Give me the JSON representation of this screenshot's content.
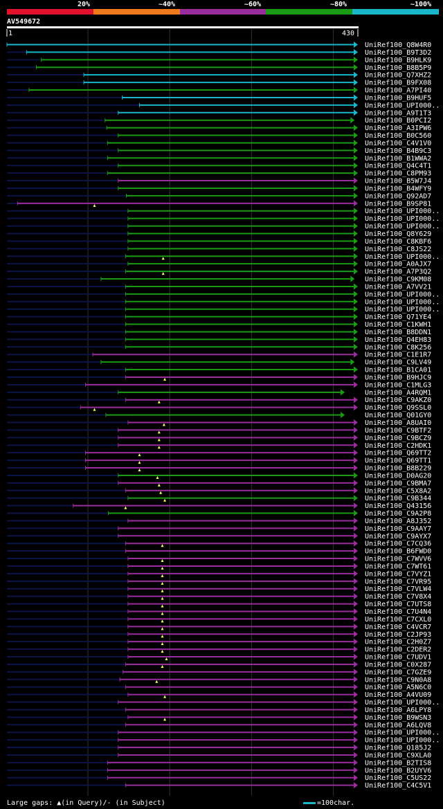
{
  "colors": {
    "red": "#e3122c",
    "orange": "#ee7a1c",
    "purple": "#9a2c9e",
    "green": "#199c14",
    "cyan": "#17b7cc",
    "dark": "#0b1447",
    "grid": "#333333"
  },
  "legend": [
    {
      "label": "20%",
      "color": "#e3122c"
    },
    {
      "label": "~40%",
      "color": "#ee7a1c"
    },
    {
      "label": "~60%",
      "color": "#9a2c9e"
    },
    {
      "label": "~80%",
      "color": "#199c14"
    },
    {
      "label": "~100%",
      "color": "#17b7cc"
    }
  ],
  "query": {
    "id": "AV549672",
    "start": "1",
    "end": "430",
    "length": 430
  },
  "footer": {
    "gaps_text": "Large gaps: ▲(in Query)/- (in Subject)",
    "scale_text": "=100char."
  },
  "chart_data": {
    "type": "alignment",
    "title": "AV549672",
    "x_range": [
      1,
      430
    ],
    "hits": [
      {
        "name": "UniRef100_Q8W4R0",
        "start": 1,
        "end": 430,
        "color": "cyan",
        "gap": null
      },
      {
        "name": "UniRef100_B9T3D2",
        "start": 25,
        "end": 430,
        "color": "cyan",
        "gap": null
      },
      {
        "name": "UniRef100_B9HLK9",
        "start": 43,
        "end": 430,
        "color": "green",
        "gap": null
      },
      {
        "name": "UniRef100_B8B5P9",
        "start": 37,
        "end": 430,
        "color": "green",
        "gap": null
      },
      {
        "name": "UniRef100_Q7XHZ2",
        "start": 95,
        "end": 430,
        "color": "cyan",
        "gap": null
      },
      {
        "name": "UniRef100_B9FX08",
        "start": 95,
        "end": 430,
        "color": "cyan",
        "gap": null
      },
      {
        "name": "UniRef100_A7PI40",
        "start": 28,
        "end": 430,
        "color": "green",
        "gap": null
      },
      {
        "name": "UniRef100_B9HUF5",
        "start": 142,
        "end": 430,
        "color": "cyan",
        "gap": null
      },
      {
        "name": "UniRef100_UPI000..",
        "start": 163,
        "end": 430,
        "color": "cyan",
        "gap": null
      },
      {
        "name": "UniRef100_A9T1T3",
        "start": 137,
        "end": 430,
        "color": "cyan",
        "gap": null
      },
      {
        "name": "UniRef100_B0PCI2",
        "start": 121,
        "end": 426,
        "color": "green",
        "gap": null
      },
      {
        "name": "UniRef100_A3IPW6",
        "start": 123,
        "end": 430,
        "color": "green",
        "gap": null
      },
      {
        "name": "UniRef100_B0C560",
        "start": 137,
        "end": 430,
        "color": "green",
        "gap": null
      },
      {
        "name": "UniRef100_C4V1V0",
        "start": 124,
        "end": 430,
        "color": "green",
        "gap": null
      },
      {
        "name": "UniRef100_B4B9C3",
        "start": 137,
        "end": 430,
        "color": "green",
        "gap": null
      },
      {
        "name": "UniRef100_B1WWA2",
        "start": 124,
        "end": 430,
        "color": "green",
        "gap": null
      },
      {
        "name": "UniRef100_Q4C4T1",
        "start": 137,
        "end": 430,
        "color": "green",
        "gap": null
      },
      {
        "name": "UniRef100_C8PM93",
        "start": 124,
        "end": 430,
        "color": "green",
        "gap": null
      },
      {
        "name": "UniRef100_B5W7J4",
        "start": 137,
        "end": 430,
        "color": "purple",
        "gap": null
      },
      {
        "name": "UniRef100_B4WFY9",
        "start": 137,
        "end": 430,
        "color": "green",
        "gap": null
      },
      {
        "name": "UniRef100_Q92AD7",
        "start": 147,
        "end": 430,
        "color": "green",
        "gap": null
      },
      {
        "name": "UniRef100_B9SP81",
        "start": 14,
        "end": 430,
        "color": "purple",
        "gap": 108
      },
      {
        "name": "UniRef100_UPI000..",
        "start": 149,
        "end": 430,
        "color": "green",
        "gap": null
      },
      {
        "name": "UniRef100_UPI000..",
        "start": 149,
        "end": 430,
        "color": "green",
        "gap": null
      },
      {
        "name": "UniRef100_UPI000..",
        "start": 149,
        "end": 430,
        "color": "green",
        "gap": null
      },
      {
        "name": "UniRef100_Q8Y629",
        "start": 149,
        "end": 430,
        "color": "green",
        "gap": null
      },
      {
        "name": "UniRef100_C8KBF6",
        "start": 149,
        "end": 430,
        "color": "green",
        "gap": null
      },
      {
        "name": "UniRef100_C8JS22",
        "start": 149,
        "end": 430,
        "color": "green",
        "gap": null
      },
      {
        "name": "UniRef100_UPI000..",
        "start": 146,
        "end": 430,
        "color": "green",
        "gap": 192
      },
      {
        "name": "UniRef100_A0AJX7",
        "start": 149,
        "end": 430,
        "color": "green",
        "gap": null
      },
      {
        "name": "UniRef100_A7P3Q2",
        "start": 146,
        "end": 430,
        "color": "green",
        "gap": 192
      },
      {
        "name": "UniRef100_C9KM08",
        "start": 116,
        "end": 426,
        "color": "green",
        "gap": null
      },
      {
        "name": "UniRef100_A7VV21",
        "start": 146,
        "end": 430,
        "color": "green",
        "gap": null
      },
      {
        "name": "UniRef100_UPI000..",
        "start": 146,
        "end": 430,
        "color": "green",
        "gap": null
      },
      {
        "name": "UniRef100_UPI000..",
        "start": 146,
        "end": 430,
        "color": "green",
        "gap": null
      },
      {
        "name": "UniRef100_UPI000..",
        "start": 146,
        "end": 430,
        "color": "green",
        "gap": null
      },
      {
        "name": "UniRef100_Q71YE4",
        "start": 146,
        "end": 430,
        "color": "green",
        "gap": null
      },
      {
        "name": "UniRef100_C1KWH1",
        "start": 146,
        "end": 430,
        "color": "green",
        "gap": null
      },
      {
        "name": "UniRef100_B8DDN1",
        "start": 146,
        "end": 430,
        "color": "green",
        "gap": null
      },
      {
        "name": "UniRef100_Q4EH83",
        "start": 146,
        "end": 430,
        "color": "green",
        "gap": null
      },
      {
        "name": "UniRef100_C8K256",
        "start": 146,
        "end": 430,
        "color": "green",
        "gap": null
      },
      {
        "name": "UniRef100_C1E1R7",
        "start": 106,
        "end": 430,
        "color": "purple",
        "gap": null
      },
      {
        "name": "UniRef100_C9LV49",
        "start": 116,
        "end": 426,
        "color": "green",
        "gap": null
      },
      {
        "name": "UniRef100_B1CA01",
        "start": 146,
        "end": 430,
        "color": "green",
        "gap": null
      },
      {
        "name": "UniRef100_B9HJC9",
        "start": 146,
        "end": 430,
        "color": "purple",
        "gap": 194
      },
      {
        "name": "UniRef100_C1MLG3",
        "start": 97,
        "end": 430,
        "color": "purple",
        "gap": null
      },
      {
        "name": "UniRef100_A4RQM1",
        "start": 137,
        "end": 414,
        "color": "green",
        "gap": null
      },
      {
        "name": "UniRef100_C9AKZ0",
        "start": 146,
        "end": 430,
        "color": "purple",
        "gap": 187
      },
      {
        "name": "UniRef100_Q9SSL0",
        "start": 91,
        "end": 430,
        "color": "purple",
        "gap": 108
      },
      {
        "name": "UniRef100_Q01GY0",
        "start": 122,
        "end": 414,
        "color": "green",
        "gap": null
      },
      {
        "name": "UniRef100_A8UAI0",
        "start": 149,
        "end": 430,
        "color": "purple",
        "gap": 193
      },
      {
        "name": "UniRef100_C9BTF2",
        "start": 137,
        "end": 430,
        "color": "purple",
        "gap": 187
      },
      {
        "name": "UniRef100_C9BCZ9",
        "start": 137,
        "end": 430,
        "color": "purple",
        "gap": 187
      },
      {
        "name": "UniRef100_C2HDK1",
        "start": 137,
        "end": 430,
        "color": "purple",
        "gap": 187
      },
      {
        "name": "UniRef100_Q69TT2",
        "start": 97,
        "end": 430,
        "color": "purple",
        "gap": 163
      },
      {
        "name": "UniRef100_Q69TT1",
        "start": 97,
        "end": 430,
        "color": "purple",
        "gap": 163
      },
      {
        "name": "UniRef100_B8B229",
        "start": 97,
        "end": 430,
        "color": "purple",
        "gap": 163
      },
      {
        "name": "UniRef100_D0AG20",
        "start": 137,
        "end": 430,
        "color": "green",
        "gap": 185
      },
      {
        "name": "UniRef100_C9BMA7",
        "start": 137,
        "end": 430,
        "color": "purple",
        "gap": 187
      },
      {
        "name": "UniRef100_C5X8A2",
        "start": 146,
        "end": 430,
        "color": "purple",
        "gap": 189
      },
      {
        "name": "UniRef100_C9B344",
        "start": 149,
        "end": 430,
        "color": "green",
        "gap": 194
      },
      {
        "name": "UniRef100_Q43156",
        "start": 82,
        "end": 430,
        "color": "purple",
        "gap": 146
      },
      {
        "name": "UniRef100_C9A2P8",
        "start": 125,
        "end": 430,
        "color": "green",
        "gap": null
      },
      {
        "name": "UniRef100_A8J352",
        "start": 149,
        "end": 430,
        "color": "purple",
        "gap": null
      },
      {
        "name": "UniRef100_C9AAY7",
        "start": 137,
        "end": 430,
        "color": "purple",
        "gap": null
      },
      {
        "name": "UniRef100_C9AYX7",
        "start": 137,
        "end": 430,
        "color": "purple",
        "gap": null
      },
      {
        "name": "UniRef100_C7CQ36",
        "start": 146,
        "end": 430,
        "color": "purple",
        "gap": 191
      },
      {
        "name": "UniRef100_B6FWD0",
        "start": 146,
        "end": 430,
        "color": "purple",
        "gap": null
      },
      {
        "name": "UniRef100_C7WVV6",
        "start": 149,
        "end": 430,
        "color": "purple",
        "gap": 191
      },
      {
        "name": "UniRef100_C7WT61",
        "start": 149,
        "end": 430,
        "color": "purple",
        "gap": 191
      },
      {
        "name": "UniRef100_C7VYZ1",
        "start": 149,
        "end": 430,
        "color": "purple",
        "gap": 191
      },
      {
        "name": "UniRef100_C7VR95",
        "start": 149,
        "end": 430,
        "color": "purple",
        "gap": 191
      },
      {
        "name": "UniRef100_C7VLW4",
        "start": 149,
        "end": 430,
        "color": "purple",
        "gap": 191
      },
      {
        "name": "UniRef100_C7V8X4",
        "start": 149,
        "end": 430,
        "color": "purple",
        "gap": 191
      },
      {
        "name": "UniRef100_C7UTS8",
        "start": 149,
        "end": 430,
        "color": "purple",
        "gap": 191
      },
      {
        "name": "UniRef100_C7U4N4",
        "start": 149,
        "end": 430,
        "color": "purple",
        "gap": 191
      },
      {
        "name": "UniRef100_C7CXL0",
        "start": 149,
        "end": 430,
        "color": "purple",
        "gap": 191
      },
      {
        "name": "UniRef100_C4VCR7",
        "start": 149,
        "end": 430,
        "color": "purple",
        "gap": 191
      },
      {
        "name": "UniRef100_C2JP93",
        "start": 149,
        "end": 430,
        "color": "purple",
        "gap": 191
      },
      {
        "name": "UniRef100_C2H0Z7",
        "start": 149,
        "end": 430,
        "color": "purple",
        "gap": 191
      },
      {
        "name": "UniRef100_C2DER2",
        "start": 149,
        "end": 430,
        "color": "purple",
        "gap": 191
      },
      {
        "name": "UniRef100_C7UDV1",
        "start": 149,
        "end": 430,
        "color": "purple",
        "gap": 196
      },
      {
        "name": "UniRef100_C0X287",
        "start": 146,
        "end": 430,
        "color": "purple",
        "gap": 191
      },
      {
        "name": "UniRef100_C7GZE9",
        "start": 143,
        "end": 430,
        "color": "purple",
        "gap": null
      },
      {
        "name": "UniRef100_C9N0A8",
        "start": 139,
        "end": 430,
        "color": "purple",
        "gap": 184
      },
      {
        "name": "UniRef100_A5N6C0",
        "start": 146,
        "end": 430,
        "color": "purple",
        "gap": null
      },
      {
        "name": "UniRef100_A4VU09",
        "start": 149,
        "end": 430,
        "color": "purple",
        "gap": 194
      },
      {
        "name": "UniRef100_UPI000..",
        "start": 137,
        "end": 430,
        "color": "purple",
        "gap": null
      },
      {
        "name": "UniRef100_A6LPY8",
        "start": 146,
        "end": 430,
        "color": "purple",
        "gap": null
      },
      {
        "name": "UniRef100_B9WSN3",
        "start": 149,
        "end": 430,
        "color": "purple",
        "gap": 194
      },
      {
        "name": "UniRef100_A6LQV8",
        "start": 146,
        "end": 430,
        "color": "purple",
        "gap": null
      },
      {
        "name": "UniRef100_UPI000..",
        "start": 137,
        "end": 430,
        "color": "purple",
        "gap": null
      },
      {
        "name": "UniRef100_UPI000..",
        "start": 137,
        "end": 430,
        "color": "purple",
        "gap": null
      },
      {
        "name": "UniRef100_Q185J2",
        "start": 137,
        "end": 430,
        "color": "purple",
        "gap": null
      },
      {
        "name": "UniRef100_C9XLA0",
        "start": 137,
        "end": 430,
        "color": "purple",
        "gap": null
      },
      {
        "name": "UniRef100_B2TIS8",
        "start": 124,
        "end": 430,
        "color": "purple",
        "gap": null
      },
      {
        "name": "UniRef100_B2UYV6",
        "start": 124,
        "end": 430,
        "color": "purple",
        "gap": null
      },
      {
        "name": "UniRef100_C5US22",
        "start": 124,
        "end": 430,
        "color": "purple",
        "gap": null
      },
      {
        "name": "UniRef100_C4C5V1",
        "start": 146,
        "end": 430,
        "color": "purple",
        "gap": null
      }
    ]
  }
}
